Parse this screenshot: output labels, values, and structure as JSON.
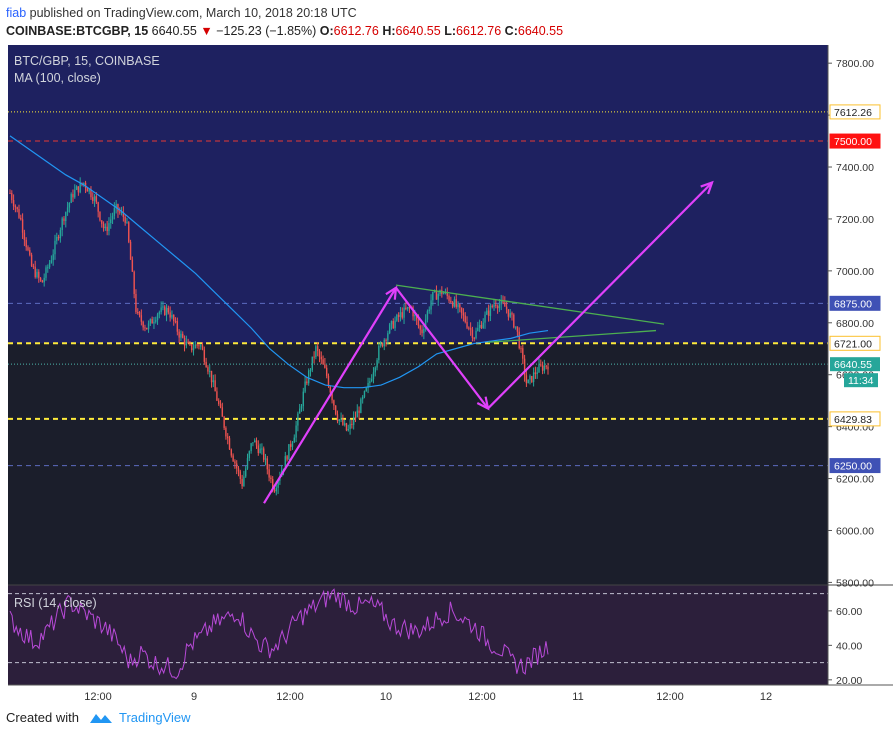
{
  "header": {
    "user": "fiab",
    "published": "published on TradingView.com, March 10, 2018 20:18 UTC"
  },
  "quote": {
    "symbol": "COINBASE:BTCGBP, 15",
    "price": "6640.55",
    "change_arrow": "▼",
    "change": "−125.23 (−1.85%)",
    "o_label": "O:",
    "o": "6612.76",
    "h_label": "H:",
    "h": "6640.55",
    "l_label": "L:",
    "l": "6612.76",
    "c_label": "C:",
    "c": "6640.55"
  },
  "chart_data": {
    "type": "line",
    "title": "BTC/GBP, 15, COINBASE",
    "indicator": "MA (100, close)",
    "rsi_title": "RSI (14, close)",
    "x_ticks": [
      "12:00",
      "9",
      "12:00",
      "10",
      "12:00",
      "11",
      "12:00",
      "12"
    ],
    "y_ticks": [
      7800,
      7600,
      7400,
      7200,
      7000,
      6800,
      6600,
      6400,
      6200,
      6000,
      5800
    ],
    "ylim": [
      5790,
      7870
    ],
    "rsi_ticks": [
      60,
      40,
      20
    ],
    "rsi_ylim": [
      17,
      75
    ],
    "levels": [
      {
        "value": 7612.26,
        "label": "7612.26",
        "style": "dotted",
        "color": "#ffeb3b"
      },
      {
        "value": 7500.0,
        "label": "7500.00",
        "style": "dashed",
        "color": "#e53935"
      },
      {
        "value": 6875.0,
        "label": "6875.00",
        "style": "dashed",
        "color": "#5c6bc0"
      },
      {
        "value": 6721.0,
        "label": "6721.00",
        "style": "dashed",
        "color": "#ffeb3b"
      },
      {
        "value": 6429.83,
        "label": "6429.83",
        "style": "dashed",
        "color": "#ffeb3b"
      },
      {
        "value": 6250.0,
        "label": "6250.00",
        "style": "dashed",
        "color": "#5c6bc0"
      }
    ],
    "last_price": {
      "value": 6640.55,
      "label": "6640.55",
      "countdown": "11:34"
    },
    "series": [
      {
        "name": "BTCGBP",
        "values": [
          7300,
          7200,
          7020,
          6950,
          7060,
          7200,
          7300,
          7340,
          7280,
          7150,
          7240,
          7200,
          6830,
          6780,
          6840,
          6850,
          6760,
          6700,
          6720,
          6600,
          6450,
          6300,
          6180,
          6350,
          6290,
          6160,
          6260,
          6380,
          6560,
          6700,
          6600,
          6440,
          6380,
          6460,
          6560,
          6700,
          6780,
          6830,
          6860,
          6760,
          6900,
          6920,
          6880,
          6820,
          6750,
          6820,
          6880,
          6860,
          6780,
          6560,
          6620,
          6640
        ]
      },
      {
        "name": "MA (100, close)",
        "values": [
          7520,
          7470,
          7420,
          7370,
          7330,
          7280,
          7230,
          7170,
          7110,
          7050,
          6990,
          6920,
          6850,
          6780,
          6700,
          6640,
          6590,
          6560,
          6550,
          6550,
          6560,
          6590,
          6630,
          6680,
          6700,
          6720,
          6730,
          6740,
          6760,
          6770
        ]
      },
      {
        "name": "RSI (14, close)",
        "values": [
          55,
          48,
          42,
          47,
          57,
          65,
          60,
          55,
          50,
          42,
          30,
          36,
          30,
          28,
          25,
          40,
          45,
          52,
          55,
          60,
          48,
          40,
          38,
          45,
          55,
          60,
          65,
          70,
          66,
          62,
          64,
          60,
          52,
          50,
          48,
          52,
          57,
          60,
          55,
          50,
          42,
          38,
          30,
          28,
          34,
          40
        ]
      }
    ],
    "drawings": {
      "arrows": [
        {
          "from": [
            "2018-03-09 11:00",
            6105
          ],
          "to": [
            "2018-03-10 03:30",
            6935
          ]
        },
        {
          "from": [
            "2018-03-10 03:30",
            6935
          ],
          "to": [
            "2018-03-10 15:00",
            6470
          ]
        },
        {
          "from": [
            "2018-03-10 15:00",
            6470
          ],
          "to": [
            "2018-03-11 19:00",
            7340
          ]
        }
      ],
      "trendlines": [
        {
          "from": [
            "2018-03-10 03:30",
            6945
          ],
          "to": [
            "2018-03-11 13:00",
            6795
          ]
        },
        {
          "from": [
            "2018-03-10 15:00",
            6725
          ],
          "to": [
            "2018-03-11 12:00",
            6770
          ]
        }
      ]
    }
  },
  "footer": {
    "created": "Created with",
    "brand": "TradingView"
  },
  "colors": {
    "main_bg": "#1b1e2b",
    "upper_bg": "#1e2160",
    "rsi_bg": "#2c1f3b",
    "axis_bg": "#ffffff",
    "arrow": "#e040fb",
    "trendline": "#4caf50",
    "ma": "#2196f3",
    "rsi": "#b84ad8",
    "up_candle": "#26a69a",
    "down_candle": "#ef5350"
  }
}
